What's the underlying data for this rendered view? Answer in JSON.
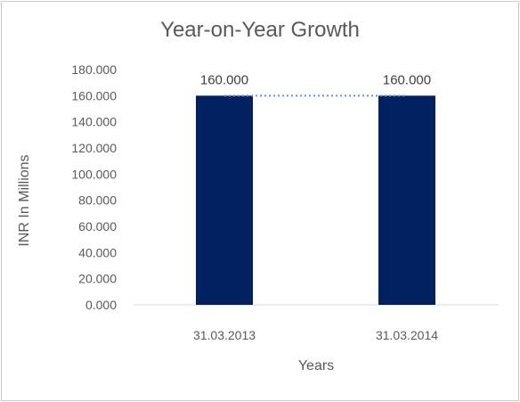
{
  "chart_data": {
    "type": "bar",
    "title": "Year-on-Year Growth",
    "xlabel": "Years",
    "ylabel": "INR In Millions",
    "categories": [
      "31.03.2013",
      "31.03.2014"
    ],
    "values": [
      160,
      160
    ],
    "value_labels": [
      "160.000",
      "160.000"
    ],
    "ylim": [
      0,
      180
    ],
    "yticks": [
      0,
      20,
      40,
      60,
      80,
      100,
      120,
      140,
      160,
      180
    ],
    "ytick_labels": [
      "0.000",
      "20.000",
      "40.000",
      "60.000",
      "80.000",
      "100.000",
      "120.000",
      "140.000",
      "160.000",
      "180.000"
    ],
    "bar_color": "#002060",
    "trendline": {
      "style": "dotted",
      "color": "#5b9bd5",
      "values": [
        160,
        160
      ]
    },
    "grid": false,
    "legend": "none"
  }
}
